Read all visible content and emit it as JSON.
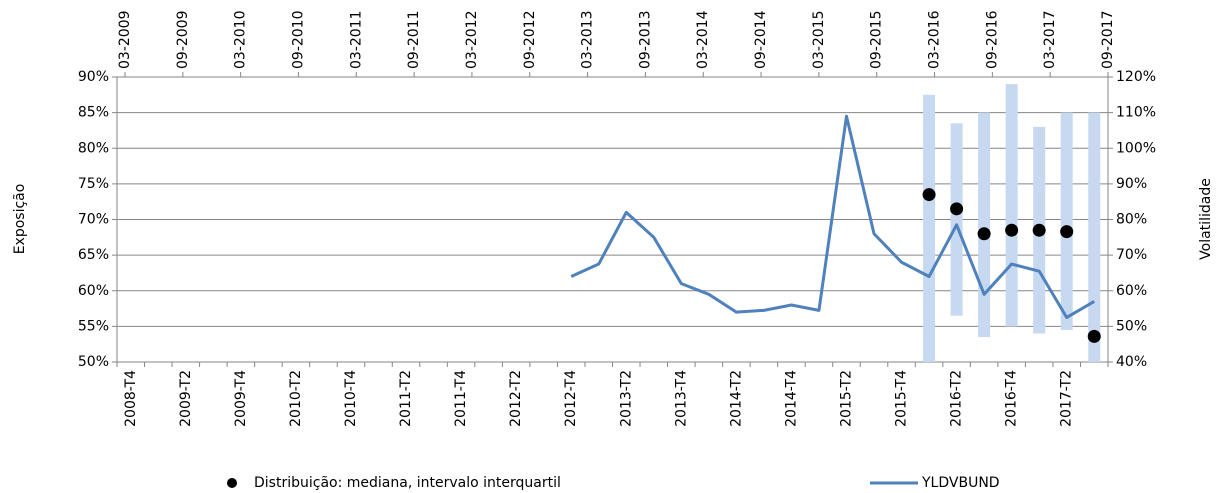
{
  "chart_data": {
    "type": "line",
    "y_label": "Exposição",
    "y2_label": "Volatilidade",
    "top_axis_labels": [
      "03-2009",
      "09-2009",
      "03-2010",
      "09-2010",
      "03-2011",
      "09-2011",
      "03-2012",
      "09-2012",
      "03-2013",
      "09-2013",
      "03-2014",
      "09-2014",
      "03-2015",
      "09-2015",
      "03-2016",
      "09-2016",
      "03-2017",
      "09-2017"
    ],
    "categories": [
      "2008-T4",
      null,
      "2009-T2",
      null,
      "2009-T4",
      null,
      "2010-T2",
      null,
      "2010-T4",
      null,
      "2011-T2",
      null,
      "2011-T4",
      null,
      "2012-T2",
      null,
      "2012-T4",
      null,
      "2013-T2",
      null,
      "2013-T4",
      null,
      "2014-T2",
      null,
      "2014-T4",
      null,
      "2015-T2",
      null,
      "2015-T4",
      null,
      "2016-T2",
      null,
      "2016-T4",
      null,
      "2017-T2",
      null
    ],
    "series": [
      {
        "name": "Distribuição: mediana, intervalo interquartil",
        "type": "distribution",
        "color": "#000000",
        "range_color": "#c6d9f1",
        "values": [
          null,
          null,
          null,
          null,
          null,
          null,
          null,
          null,
          null,
          null,
          null,
          null,
          null,
          null,
          null,
          null,
          null,
          null,
          null,
          null,
          null,
          null,
          null,
          null,
          null,
          null,
          null,
          null,
          null,
          73.5,
          71.5,
          68,
          68.5,
          68.5,
          68.3,
          53.6
        ],
        "q1": [
          null,
          null,
          null,
          null,
          null,
          null,
          null,
          null,
          null,
          null,
          null,
          null,
          null,
          null,
          null,
          null,
          null,
          null,
          null,
          null,
          null,
          null,
          null,
          null,
          null,
          null,
          null,
          null,
          null,
          50,
          56.5,
          53.5,
          55,
          54,
          54.5,
          50
        ],
        "q3": [
          null,
          null,
          null,
          null,
          null,
          null,
          null,
          null,
          null,
          null,
          null,
          null,
          null,
          null,
          null,
          null,
          null,
          null,
          null,
          null,
          null,
          null,
          null,
          null,
          null,
          null,
          null,
          null,
          null,
          87.5,
          83.5,
          85,
          89,
          83,
          85,
          85
        ]
      },
      {
        "name": "YLDVBUND",
        "type": "line",
        "axis": "y2",
        "color": "#4f81bd",
        "values": [
          null,
          null,
          null,
          null,
          null,
          null,
          null,
          null,
          null,
          null,
          null,
          null,
          null,
          null,
          null,
          null,
          64,
          67.5,
          82,
          75,
          62,
          59,
          54,
          54.5,
          56,
          54.5,
          109,
          76,
          68,
          64,
          78.5,
          59,
          67.5,
          65.5,
          52.5,
          57
        ]
      }
    ],
    "ylim": [
      50,
      90
    ],
    "yticks": [
      {
        "value": 50,
        "label": "50%"
      },
      {
        "value": 55,
        "label": "55%"
      },
      {
        "value": 60,
        "label": "60%"
      },
      {
        "value": 65,
        "label": "65%"
      },
      {
        "value": 70,
        "label": "70%"
      },
      {
        "value": 75,
        "label": "75%"
      },
      {
        "value": 80,
        "label": "80%"
      },
      {
        "value": 85,
        "label": "85%"
      },
      {
        "value": 90,
        "label": "90%"
      }
    ],
    "y2lim": [
      40,
      120
    ],
    "y2ticks": [
      {
        "value": 40,
        "label": "40%"
      },
      {
        "value": 50,
        "label": "50%"
      },
      {
        "value": 60,
        "label": "60%"
      },
      {
        "value": 70,
        "label": "70%"
      },
      {
        "value": 80,
        "label": "80%"
      },
      {
        "value": 90,
        "label": "90%"
      },
      {
        "value": 100,
        "label": "100%"
      },
      {
        "value": 110,
        "label": "110%"
      },
      {
        "value": 120,
        "label": "120%"
      }
    ],
    "grid": true,
    "legend": "bottom"
  }
}
